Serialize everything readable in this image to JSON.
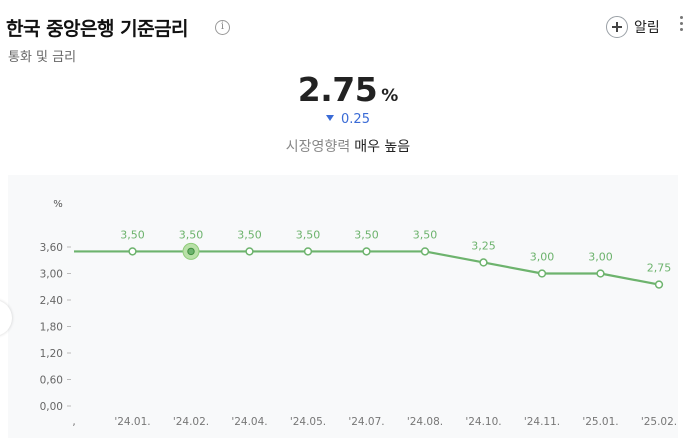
{
  "header": {
    "title": "한국 중앙은행 기준금리",
    "info_icon": "info-icon",
    "subtitle": "통화 및 금리",
    "alert_label": "알림",
    "alert_icon": "plus-circle-icon",
    "more_icon": "more-vertical-icon"
  },
  "summary": {
    "value": "2.75",
    "unit": "%",
    "change": "0.25",
    "change_direction": "down",
    "impact_label": "시장영향력",
    "impact_value": "매우 높음"
  },
  "colors": {
    "line": "#6db36d",
    "change": "#3a6bd6",
    "chart_bg": "#f8f9fa"
  },
  "chart_data": {
    "type": "line",
    "ylabel": "%",
    "ylim": [
      0,
      3.6
    ],
    "yticks": [
      "0,00",
      "0,60",
      "1,20",
      "1,80",
      "2,40",
      "3,00",
      "3,60"
    ],
    "categories": [
      ",",
      "'24.01.",
      "'24.02.",
      "'24.04.",
      "'24.05.",
      "'24.07.",
      "'24.08.",
      "'24.10.",
      "'24.11.",
      "'25.01.",
      "'25.02."
    ],
    "values": [
      3.5,
      3.5,
      3.5,
      3.5,
      3.5,
      3.5,
      3.5,
      3.25,
      3.0,
      3.0,
      2.75
    ],
    "data_labels": [
      "",
      "3,50",
      "3,50",
      "3,50",
      "3,50",
      "3,50",
      "3,50",
      "3,25",
      "3,00",
      "3,00",
      "2,75"
    ],
    "highlight_index": 2,
    "grid": false,
    "legend": "none"
  }
}
